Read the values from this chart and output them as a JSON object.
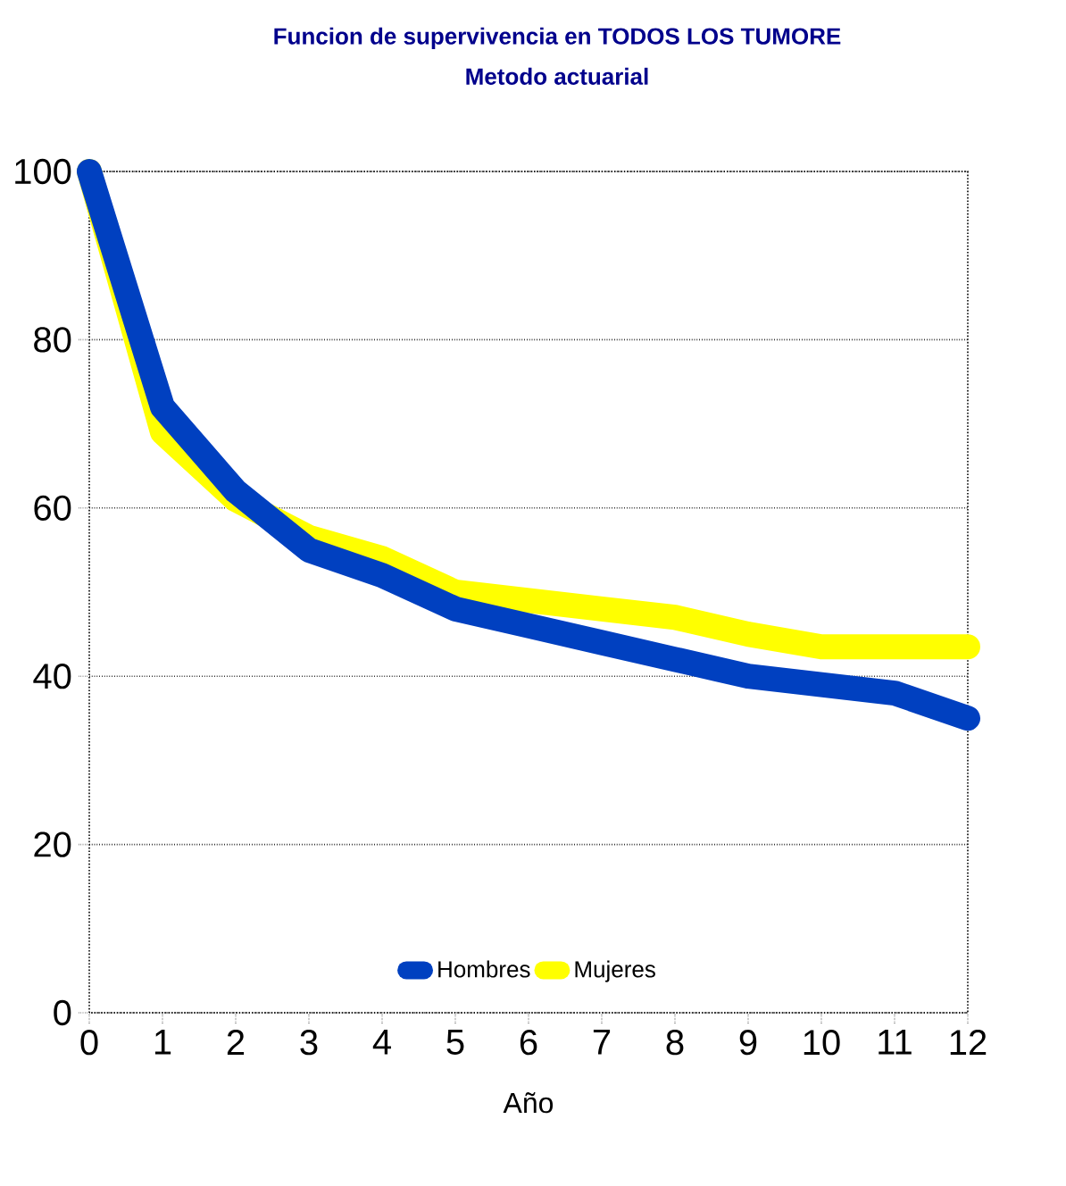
{
  "chart_data": {
    "type": "line",
    "title": "Funcion de supervivencia en TODOS LOS TUMORE",
    "subtitle": "Metodo actuarial",
    "xlabel": "Año",
    "x": [
      0,
      1,
      2,
      3,
      4,
      5,
      6,
      7,
      8,
      9,
      10,
      11,
      12
    ],
    "series": [
      {
        "name": "Hombres",
        "color": "#0040c0",
        "values": [
          100,
          72,
          62,
          55,
          52,
          48,
          46,
          44,
          42,
          40,
          39,
          38,
          35
        ]
      },
      {
        "name": "Mujeres",
        "color": "#ffff00",
        "values": [
          100,
          69,
          61,
          56.5,
          54,
          50,
          49,
          48,
          47,
          45,
          43.5,
          43.5,
          43.5
        ]
      }
    ],
    "xlim": [
      0,
      12
    ],
    "xticks": [
      0,
      1,
      2,
      3,
      4,
      5,
      6,
      7,
      8,
      9,
      10,
      11,
      12
    ],
    "ylim": [
      0,
      100
    ],
    "yticks": [
      0,
      20,
      40,
      60,
      80,
      100
    ],
    "grid": "y",
    "legend": "bottom",
    "marker": "none",
    "line_style": "solid"
  }
}
